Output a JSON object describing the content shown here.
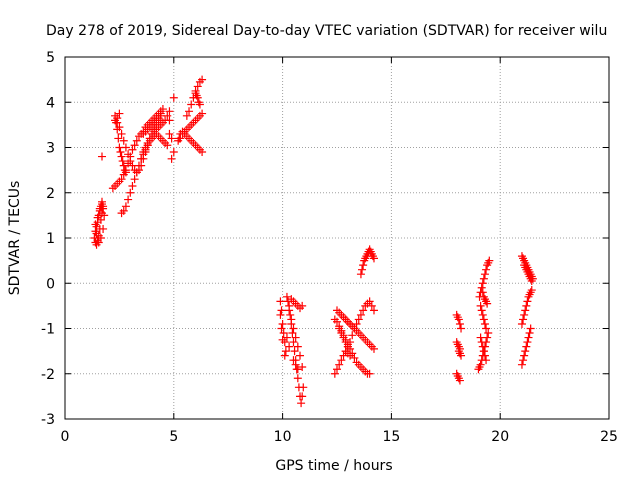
{
  "chart_data": {
    "type": "scatter",
    "title": "Day 278 of 2019, Sidereal Day-to-day VTEC variation (SDTVAR) for receiver wilu",
    "xlabel": "GPS time / hours",
    "ylabel": "SDTVAR / TECUs",
    "xlim": [
      0,
      25
    ],
    "ylim": [
      -3,
      5
    ],
    "x_ticks": [
      0,
      5,
      10,
      15,
      20,
      25
    ],
    "y_ticks": [
      -3,
      -2,
      -1,
      0,
      1,
      2,
      3,
      4,
      5
    ],
    "x_tick_labels": [
      "0",
      "5",
      "10",
      "15",
      "20",
      "25"
    ],
    "y_tick_labels": [
      "-3",
      "-2",
      "-1",
      "0",
      "1",
      "2",
      "3",
      "4",
      "5"
    ],
    "grid": true,
    "marker": "plus",
    "color": "#ff0000",
    "series": [
      {
        "name": "SDTVAR",
        "x": [
          1.35,
          1.4,
          1.45,
          1.5,
          1.55,
          1.6,
          1.65,
          1.7,
          1.4,
          1.45,
          1.5,
          1.55,
          1.6,
          1.65,
          1.7,
          1.75,
          1.4,
          1.5,
          1.6,
          1.7,
          1.75,
          1.8,
          1.75,
          1.65,
          1.55,
          1.45,
          1.7,
          2.2,
          2.3,
          2.4,
          2.5,
          2.6,
          2.7,
          2.8,
          2.9,
          3.0,
          3.1,
          3.2,
          3.3,
          3.4,
          3.5,
          3.6,
          3.7,
          3.8,
          3.9,
          4.0,
          4.1,
          4.2,
          4.3,
          4.4,
          4.5,
          2.3,
          2.4,
          2.5,
          2.6,
          2.7,
          2.8,
          2.9,
          3.0,
          3.1,
          3.2,
          3.3,
          3.4,
          3.5,
          3.6,
          3.7,
          3.8,
          3.9,
          4.0,
          4.1,
          4.2,
          4.3,
          4.4,
          2.6,
          2.7,
          2.8,
          2.9,
          3.0,
          3.1,
          3.2,
          3.3,
          3.4,
          3.5,
          3.6,
          3.7,
          3.8,
          3.9,
          4.0,
          4.1,
          4.2,
          4.3,
          4.4,
          4.5,
          4.6,
          4.7,
          4.8,
          2.3,
          2.35,
          2.4,
          2.45,
          2.5,
          2.55,
          2.6,
          2.65,
          2.7,
          2.75,
          2.8,
          2.5,
          2.4,
          3.5,
          3.6,
          3.7,
          3.8,
          3.9,
          4.0,
          4.1,
          4.2,
          4.3,
          4.4,
          4.5,
          4.6,
          4.7,
          3.6,
          3.7,
          3.8,
          3.9,
          4.0,
          4.1,
          4.2,
          4.3,
          4.4,
          4.8,
          4.9,
          5.0,
          4.9,
          4.8,
          5.0,
          5.2,
          5.3,
          5.4,
          5.5,
          5.6,
          5.7,
          5.8,
          5.9,
          6.0,
          6.1,
          6.2,
          6.3,
          5.4,
          5.5,
          5.6,
          5.7,
          5.8,
          5.9,
          6.0,
          6.1,
          6.2,
          6.3,
          5.6,
          5.7,
          5.8,
          5.9,
          6.0,
          6.1,
          6.2,
          6.3,
          6.0,
          6.05,
          6.1,
          6.15,
          6.2,
          5.3,
          5.25,
          9.9,
          9.95,
          10.0,
          10.05,
          10.1,
          10.15,
          9.9,
          9.95,
          10.0,
          10.1,
          10.2,
          10.25,
          10.3,
          10.35,
          10.4,
          10.45,
          10.5,
          10.55,
          10.6,
          10.65,
          10.7,
          10.75,
          10.8,
          10.85,
          10.9,
          10.95,
          10.3,
          10.4,
          10.5,
          10.6,
          10.7,
          10.8,
          10.9,
          10.4,
          10.5,
          10.6,
          10.7,
          10.8,
          10.9,
          10.2,
          10.3,
          10.5,
          10.6,
          10.7,
          12.4,
          12.5,
          12.6,
          12.7,
          12.8,
          12.9,
          13.0,
          13.1,
          13.2,
          13.3,
          13.4,
          13.5,
          13.6,
          13.7,
          13.8,
          13.9,
          14.0,
          14.1,
          14.2,
          12.4,
          12.5,
          12.6,
          12.7,
          12.8,
          12.9,
          13.0,
          13.1,
          13.2,
          13.3,
          13.4,
          13.5,
          13.6,
          13.7,
          13.8,
          13.9,
          14.0,
          12.5,
          12.6,
          12.7,
          12.8,
          12.9,
          13.0,
          13.1,
          13.2,
          13.3,
          13.4,
          13.5,
          13.6,
          13.7,
          13.8,
          13.9,
          14.0,
          14.1,
          14.2,
          12.6,
          12.7,
          12.8,
          12.9,
          13.0,
          12.7,
          12.8,
          12.9,
          13.0,
          13.1,
          12.9,
          13.0,
          13.1,
          13.6,
          13.65,
          13.7,
          13.75,
          13.8,
          13.85,
          13.9,
          13.95,
          14.0,
          14.05,
          14.1,
          14.15,
          14.2,
          18.0,
          18.05,
          18.1,
          18.15,
          18.2,
          18.0,
          18.05,
          18.1,
          18.15,
          18.0,
          18.05,
          18.1,
          18.15,
          18.1,
          18.15,
          18.2,
          19.0,
          19.05,
          19.1,
          19.15,
          19.2,
          19.25,
          19.3,
          19.35,
          19.4,
          19.45,
          19.05,
          19.1,
          19.15,
          19.2,
          19.25,
          19.3,
          19.35,
          19.4,
          19.45,
          19.5,
          19.1,
          19.15,
          19.2,
          19.25,
          19.3,
          19.35,
          19.2,
          19.25,
          19.3,
          19.35,
          19.4,
          19.1,
          19.15,
          19.2,
          19.25,
          19.3,
          19.35,
          21.0,
          21.05,
          21.1,
          21.15,
          21.2,
          21.25,
          21.3,
          21.35,
          21.4,
          21.45,
          21.5,
          21.1,
          21.15,
          21.2,
          21.25,
          21.3,
          21.35,
          21.4,
          21.45,
          21.0,
          21.05,
          21.1,
          21.15,
          21.2,
          21.25,
          21.3,
          21.35,
          21.4,
          21.0,
          21.05,
          21.1,
          21.15,
          21.2,
          21.25,
          21.3,
          21.35,
          21.4,
          21.45
        ],
        "y": [
          1.0,
          0.9,
          0.85,
          0.95,
          1.05,
          1.2,
          1.4,
          1.55,
          1.15,
          1.25,
          1.35,
          1.5,
          1.6,
          1.7,
          1.75,
          1.7,
          1.3,
          1.45,
          1.65,
          1.8,
          1.65,
          1.5,
          1.2,
          1.0,
          0.9,
          1.1,
          2.8,
          2.1,
          2.15,
          2.2,
          2.25,
          2.3,
          2.4,
          2.5,
          2.65,
          2.8,
          2.95,
          3.05,
          3.15,
          3.25,
          3.3,
          3.35,
          3.45,
          3.5,
          3.55,
          3.6,
          3.65,
          3.7,
          3.75,
          3.8,
          3.85,
          3.6,
          3.55,
          3.45,
          3.3,
          3.15,
          3.0,
          2.85,
          2.7,
          2.6,
          2.5,
          2.45,
          2.5,
          2.6,
          2.75,
          2.9,
          3.05,
          3.2,
          3.3,
          3.4,
          3.5,
          3.6,
          3.75,
          1.55,
          1.6,
          1.7,
          1.85,
          2.0,
          2.15,
          2.3,
          2.45,
          2.6,
          2.75,
          2.9,
          3.0,
          3.1,
          3.2,
          3.3,
          3.35,
          3.4,
          3.45,
          3.5,
          3.55,
          3.6,
          3.7,
          3.8,
          3.7,
          3.55,
          3.4,
          3.2,
          3.0,
          2.9,
          2.8,
          2.7,
          2.6,
          2.5,
          2.45,
          3.75,
          3.65,
          2.75,
          2.85,
          2.95,
          3.05,
          3.15,
          3.2,
          3.25,
          3.3,
          3.25,
          3.2,
          3.15,
          3.1,
          3.05,
          3.3,
          3.35,
          3.4,
          3.45,
          3.5,
          3.55,
          3.6,
          3.65,
          3.7,
          3.3,
          3.2,
          2.9,
          2.75,
          3.6,
          4.1,
          3.15,
          3.2,
          3.3,
          3.35,
          3.4,
          3.45,
          3.5,
          3.55,
          3.6,
          3.65,
          3.7,
          3.75,
          3.35,
          3.3,
          3.25,
          3.2,
          3.15,
          3.1,
          3.05,
          3.0,
          2.95,
          2.9,
          3.7,
          3.8,
          3.95,
          4.1,
          4.25,
          4.35,
          4.45,
          4.5,
          4.2,
          4.15,
          4.1,
          4.0,
          3.95,
          3.3,
          3.2,
          -0.4,
          -0.6,
          -0.9,
          -1.1,
          -1.3,
          -1.5,
          -0.7,
          -1.0,
          -1.25,
          -1.6,
          -0.3,
          -0.4,
          -0.5,
          -0.7,
          -0.9,
          -1.1,
          -1.3,
          -1.5,
          -1.7,
          -1.9,
          -2.1,
          -2.3,
          -2.5,
          -2.65,
          -2.5,
          -2.3,
          -0.6,
          -0.8,
          -1.0,
          -1.2,
          -1.4,
          -1.6,
          -1.85,
          -0.35,
          -0.4,
          -0.45,
          -0.5,
          -0.55,
          -0.5,
          -1.2,
          -1.4,
          -1.7,
          -1.8,
          -1.9,
          -2.0,
          -1.9,
          -1.8,
          -1.7,
          -1.6,
          -1.5,
          -1.4,
          -1.3,
          -1.15,
          -1.0,
          -0.9,
          -0.8,
          -0.7,
          -0.6,
          -0.5,
          -0.45,
          -0.4,
          -0.5,
          -0.6,
          -0.8,
          -0.85,
          -0.95,
          -1.05,
          -1.15,
          -1.25,
          -1.35,
          -1.45,
          -1.55,
          -1.65,
          -1.75,
          -1.8,
          -1.85,
          -1.9,
          -1.95,
          -2.0,
          -2.0,
          -0.6,
          -0.65,
          -0.7,
          -0.75,
          -0.8,
          -0.85,
          -0.9,
          -0.95,
          -1.0,
          -1.05,
          -1.1,
          -1.15,
          -1.2,
          -1.25,
          -1.3,
          -1.35,
          -1.4,
          -1.45,
          -1.0,
          -1.1,
          -1.2,
          -1.3,
          -1.4,
          -0.7,
          -0.75,
          -0.8,
          -0.85,
          -0.9,
          -1.5,
          -1.55,
          -1.6,
          0.2,
          0.3,
          0.4,
          0.5,
          0.55,
          0.6,
          0.65,
          0.7,
          0.75,
          0.7,
          0.65,
          0.6,
          0.55,
          -0.7,
          -0.75,
          -0.8,
          -0.9,
          -1.0,
          -1.3,
          -1.35,
          -1.4,
          -1.45,
          -2.0,
          -2.05,
          -2.1,
          -2.15,
          -1.5,
          -1.55,
          -1.6,
          -1.9,
          -1.85,
          -1.8,
          -1.7,
          -1.6,
          -1.5,
          -1.4,
          -1.3,
          -1.2,
          -1.1,
          -0.3,
          -0.2,
          -0.1,
          0.0,
          0.1,
          0.2,
          0.3,
          0.4,
          0.45,
          0.5,
          -0.5,
          -0.6,
          -0.7,
          -0.8,
          -0.9,
          -1.0,
          -0.2,
          -0.3,
          -0.35,
          -0.4,
          -0.45,
          -1.2,
          -1.3,
          -1.4,
          -1.5,
          -1.6,
          -1.7,
          0.6,
          0.55,
          0.5,
          0.45,
          0.4,
          0.35,
          0.3,
          0.25,
          0.2,
          0.15,
          0.1,
          0.4,
          0.35,
          0.3,
          0.25,
          0.2,
          0.15,
          0.1,
          0.05,
          -1.8,
          -1.7,
          -1.6,
          -1.5,
          -1.4,
          -1.3,
          -1.2,
          -1.1,
          -1.0,
          -0.9,
          -0.8,
          -0.7,
          -0.6,
          -0.5,
          -0.4,
          -0.3,
          -0.25,
          -0.2,
          -0.15
        ]
      }
    ]
  }
}
